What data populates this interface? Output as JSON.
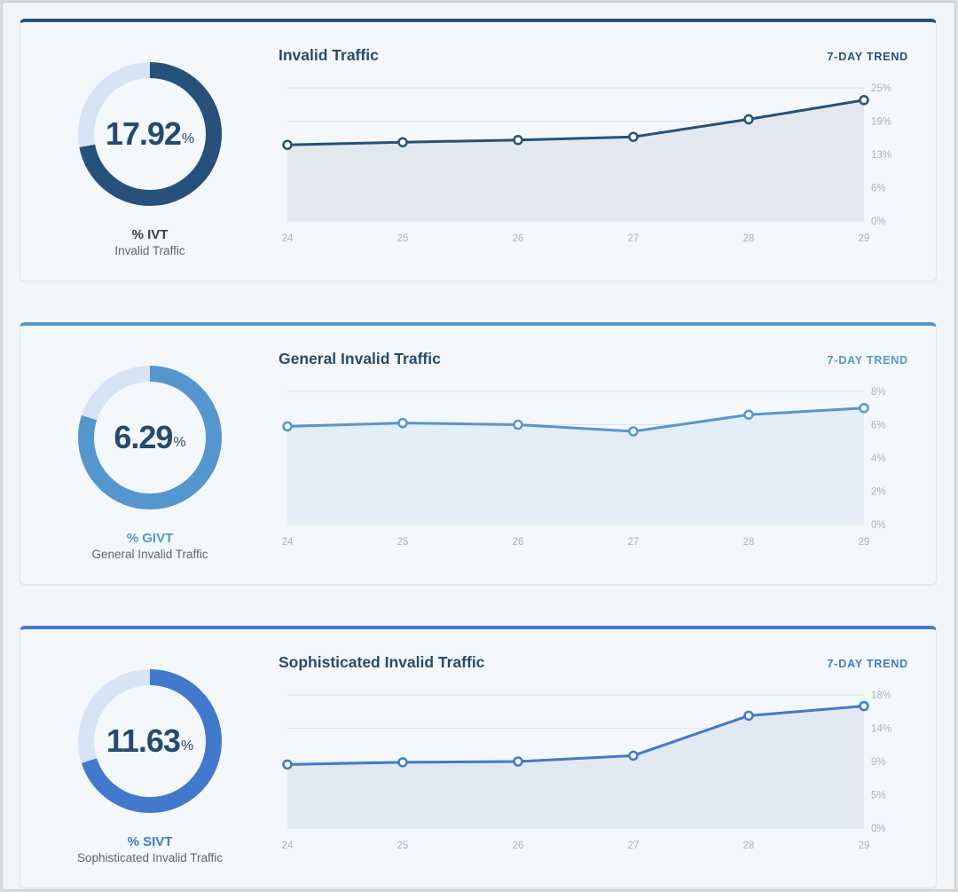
{
  "cards": [
    {
      "title": "Invalid Traffic",
      "trend_label": "7-DAY TREND",
      "metric_value": "17.92",
      "metric_unit": "%",
      "metric_label": "% IVT",
      "metric_sub": "Invalid Traffic",
      "accent": "#27507a",
      "label_color": "#2b3f55",
      "fill_color": "#e3e8ee",
      "ring_track": "#d6e4f6",
      "ring_fraction": 0.72
    },
    {
      "title": "General Invalid Traffic",
      "trend_label": "7-DAY TREND",
      "metric_value": "6.29",
      "metric_unit": "%",
      "metric_label": "% GIVT",
      "metric_sub": "General Invalid Traffic",
      "accent": "#5596cf",
      "label_color": "#5596cf",
      "fill_color": "#e4eef8",
      "ring_track": "#d6e4f6",
      "ring_fraction": 0.8
    },
    {
      "title": "Sophisticated Invalid Traffic",
      "trend_label": "7-DAY TREND",
      "metric_value": "11.63",
      "metric_unit": "%",
      "metric_label": "% SIVT",
      "metric_sub": "Sophisticated Invalid Traffic",
      "accent": "#4279cc",
      "label_color": "#4279cc",
      "fill_color": "#e3e9f3",
      "ring_track": "#d6e4f6",
      "ring_fraction": 0.7
    }
  ],
  "chart_data": [
    {
      "type": "area",
      "title": "Invalid Traffic",
      "x": [
        "24",
        "25",
        "26",
        "27",
        "28",
        "29"
      ],
      "series": [
        {
          "values": [
            14.3,
            14.8,
            15.2,
            15.8,
            19.1,
            22.7
          ]
        }
      ],
      "yticks": [
        "0%",
        "6%",
        "13%",
        "19%",
        "25%"
      ],
      "ylim": [
        0,
        25
      ],
      "grid": true
    },
    {
      "type": "area",
      "title": "General Invalid Traffic",
      "x": [
        "24",
        "25",
        "26",
        "27",
        "28",
        "29"
      ],
      "series": [
        {
          "values": [
            5.9,
            6.1,
            6.0,
            5.6,
            6.6,
            7.0
          ]
        }
      ],
      "yticks": [
        "0%",
        "2%",
        "4%",
        "6%",
        "8%"
      ],
      "ylim": [
        0,
        8
      ],
      "grid": true
    },
    {
      "type": "area",
      "title": "Sophisticated Invalid Traffic",
      "x": [
        "24",
        "25",
        "26",
        "27",
        "28",
        "29"
      ],
      "series": [
        {
          "values": [
            8.6,
            8.9,
            9.0,
            9.8,
            15.2,
            16.5
          ]
        }
      ],
      "yticks": [
        "0%",
        "5%",
        "9%",
        "14%",
        "18%"
      ],
      "ylim": [
        0,
        18
      ],
      "grid": true
    }
  ]
}
